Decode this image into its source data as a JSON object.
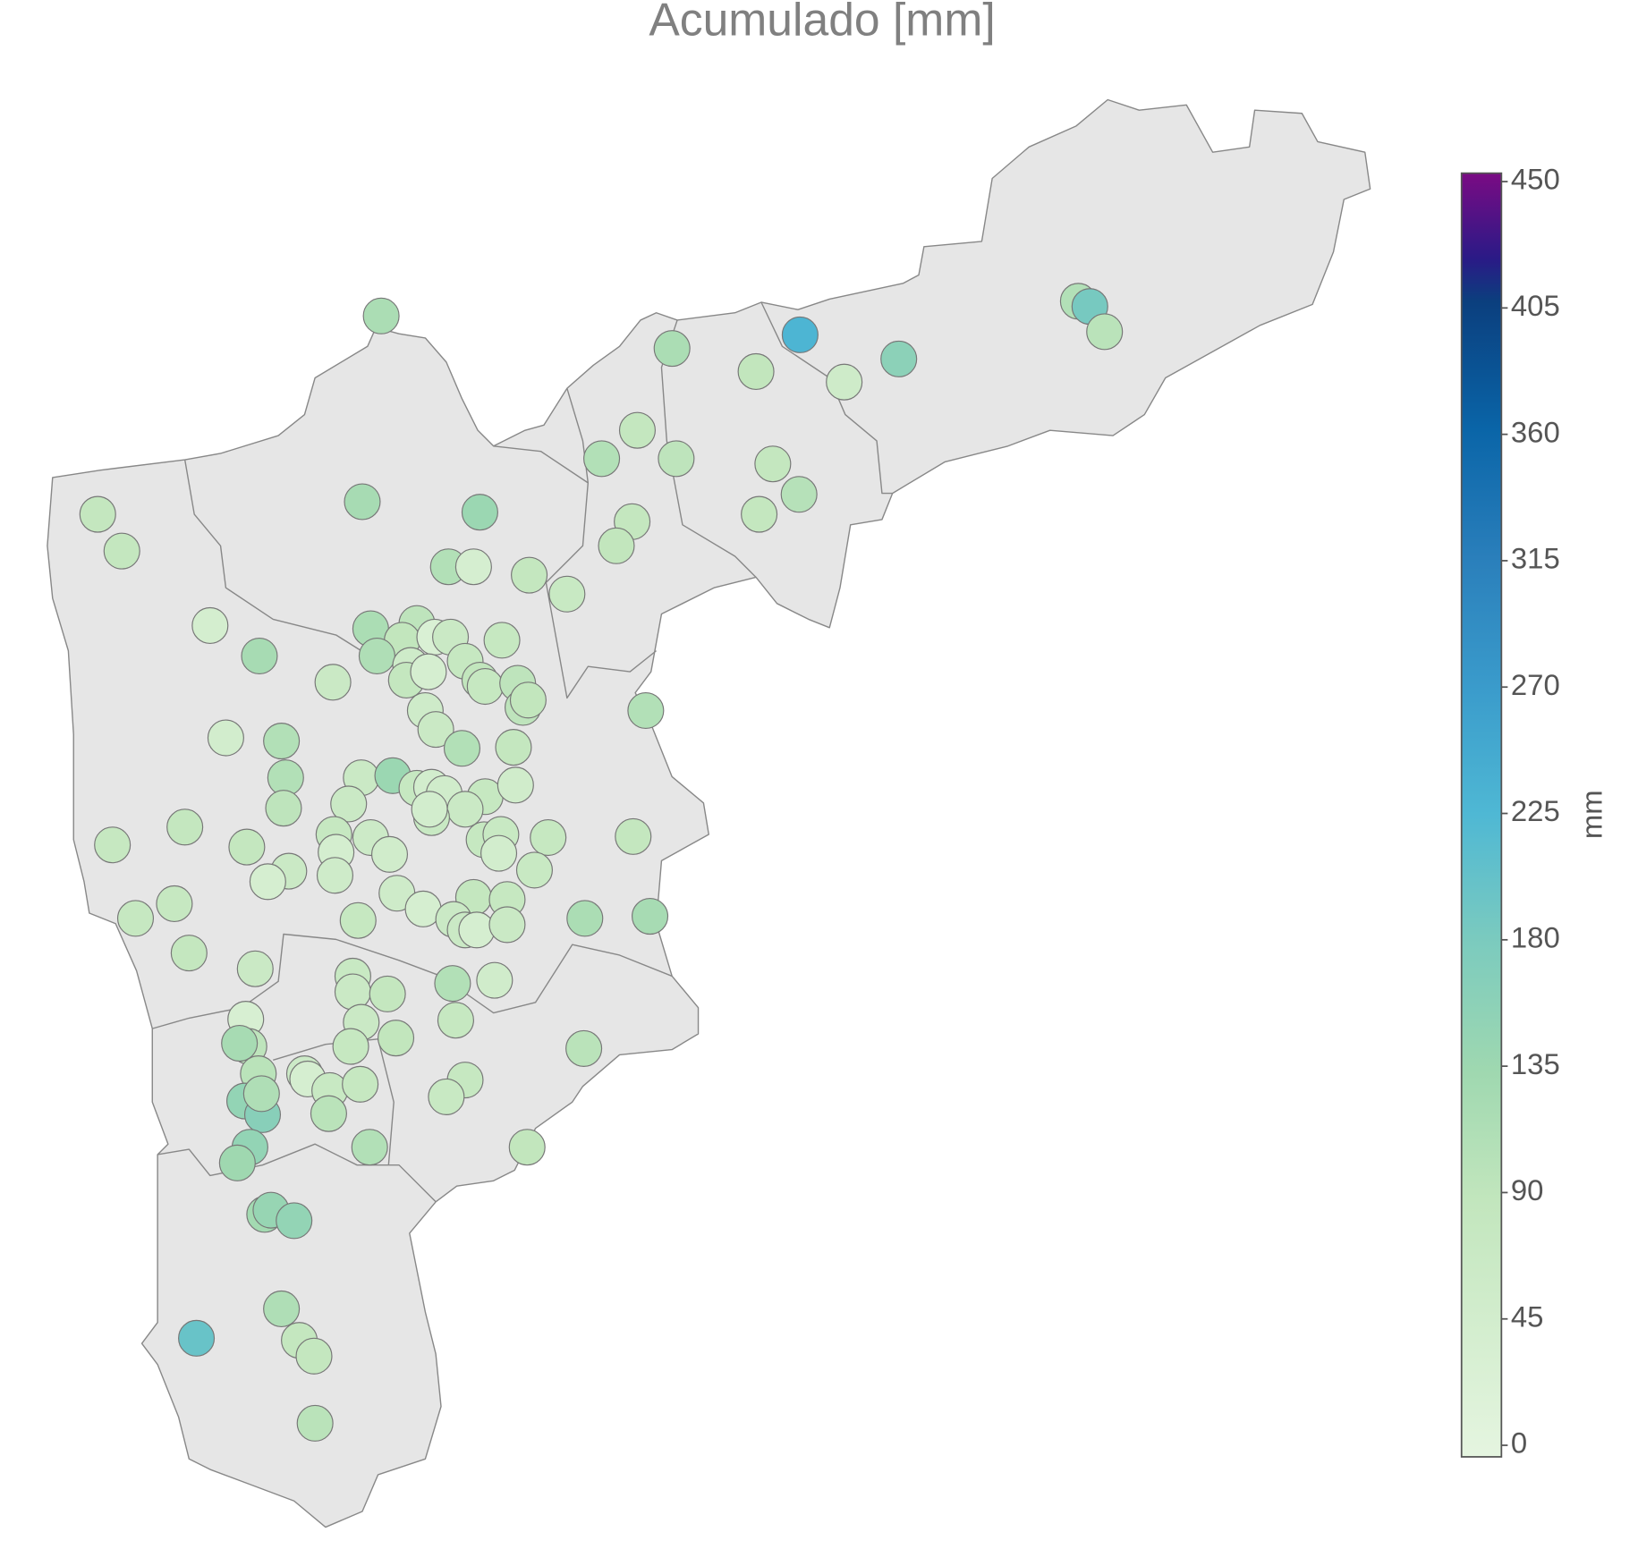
{
  "chart_data": {
    "type": "scatter",
    "title": "Acumulado [mm]",
    "values": [
      120,
      120,
      230,
      90,
      60,
      160,
      110,
      185,
      100,
      85,
      110,
      95,
      85,
      105,
      85,
      85,
      85,
      125,
      140,
      110,
      40,
      85,
      75,
      85,
      90,
      45,
      125,
      120,
      95,
      90,
      115,
      30,
      70,
      80,
      60,
      80,
      70,
      85,
      40,
      90,
      80,
      95,
      95,
      90,
      110,
      60,
      70,
      50,
      110,
      110,
      85,
      110,
      70,
      140,
      80,
      50,
      55,
      80,
      55,
      70,
      95,
      70,
      75,
      50,
      85,
      80,
      85,
      80,
      65,
      45,
      55,
      80,
      75,
      50,
      80,
      85,
      75,
      70,
      40,
      60,
      60,
      80,
      80,
      40,
      85,
      80,
      70,
      80,
      70,
      40,
      70,
      120,
      125,
      85,
      70,
      75,
      70,
      85,
      55,
      110,
      35,
      70,
      80,
      95,
      90,
      125,
      80,
      100,
      100,
      65,
      40,
      75,
      80,
      80,
      75,
      150,
      165,
      115,
      100,
      150,
      110,
      90,
      135,
      130,
      145,
      150,
      115,
      200,
      85,
      85,
      100
    ],
    "colorbar": {
      "title": "mm",
      "lim": [
        0,
        450
      ],
      "ticks": [
        0,
        45,
        90,
        135,
        180,
        225,
        270,
        315,
        360,
        405,
        450
      ]
    },
    "colorscale": [
      [
        0,
        "#e5f5e0"
      ],
      [
        90,
        "#c2e6bd"
      ],
      [
        135,
        "#9fd8b0"
      ],
      [
        180,
        "#7ccbbe"
      ],
      [
        225,
        "#4fb8d4"
      ],
      [
        270,
        "#3a9bcb"
      ],
      [
        315,
        "#2a7fbb"
      ],
      [
        360,
        "#0a65a8"
      ],
      [
        405,
        "#0b3f7e"
      ],
      [
        420,
        "#2a1a86"
      ],
      [
        450,
        "#7a0b84"
      ]
    ]
  }
}
